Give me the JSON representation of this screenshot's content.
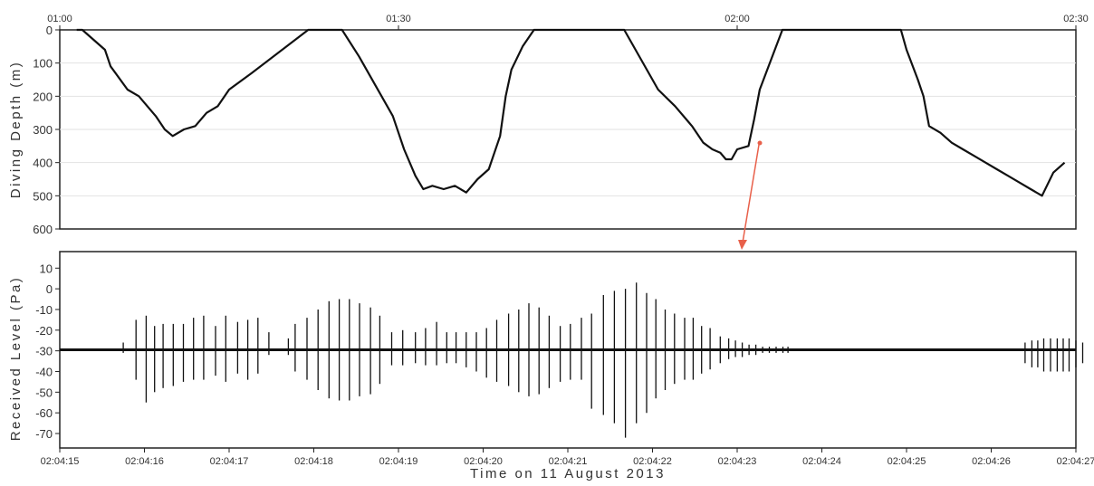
{
  "chart_data": [
    {
      "type": "line",
      "ylabel": "Diving Depth (m)",
      "x_ticks": [
        "01:00",
        "01:30",
        "02:00",
        "02:30"
      ],
      "x_range_min": [
        0,
        90
      ],
      "ylim": [
        600,
        0
      ],
      "y_ticks": [
        0,
        100,
        200,
        300,
        400,
        500,
        600
      ],
      "grid": "horizontal",
      "series": [
        {
          "color": "#111111",
          "x": [
            1.5,
            2,
            4,
            4.5,
            6,
            7,
            8.5,
            9.3,
            10,
            11,
            12,
            13,
            14,
            15,
            17,
            22,
            24,
            25,
            26.5,
            28,
            29.5,
            30.5,
            31.5,
            32.2,
            33,
            34,
            35,
            36,
            37,
            38,
            39,
            39.5,
            40,
            41,
            42,
            44,
            48.5,
            50,
            51.5,
            53,
            54.5,
            56,
            57,
            57.8,
            58.5,
            59,
            59.5,
            60,
            61,
            61.5,
            62,
            63,
            64,
            64.5,
            65,
            66,
            67,
            67.8,
            68.5,
            72,
            74.5,
            75,
            76,
            76.5,
            77,
            78,
            79,
            80,
            81,
            82,
            83,
            84,
            85,
            86,
            87,
            88,
            89
          ],
          "y": [
            0,
            0,
            60,
            110,
            180,
            200,
            260,
            300,
            320,
            300,
            290,
            250,
            230,
            180,
            130,
            0,
            0,
            0,
            80,
            170,
            260,
            360,
            440,
            480,
            470,
            480,
            470,
            490,
            450,
            420,
            320,
            200,
            120,
            50,
            0,
            0,
            0,
            0,
            90,
            180,
            230,
            290,
            340,
            360,
            370,
            390,
            390,
            360,
            350,
            270,
            180,
            90,
            0,
            0,
            0,
            0,
            0,
            0,
            0,
            0,
            0,
            60,
            150,
            200,
            290,
            310,
            340,
            360,
            380,
            400,
            420,
            440,
            460,
            480,
            500,
            430,
            400
          ]
        }
      ]
    },
    {
      "type": "line",
      "xlabel": "Time on 11 August 2013",
      "ylabel": "Received Level (Pa)",
      "x_ticks": [
        "02:04:15",
        "02:04:16",
        "02:04:17",
        "02:04:18",
        "02:04:19",
        "02:04:20",
        "02:04:21",
        "02:04:22",
        "02:04:23",
        "02:04:24",
        "02:04:25",
        "02:04:26",
        "02:04:27"
      ],
      "y_ticks": [
        10,
        0,
        -10,
        -20,
        -30,
        -40,
        -50,
        -60,
        -70
      ],
      "ylim": [
        -77,
        18
      ],
      "baseline": -29.5,
      "series": [
        {
          "color": "#111111",
          "pulse_times": [
            15.75,
            15.9,
            16.02,
            16.12,
            16.22,
            16.34,
            16.46,
            16.58,
            16.7,
            16.84,
            16.96,
            17.1,
            17.22,
            17.34,
            17.47,
            17.7,
            17.78,
            17.92,
            18.05,
            18.18,
            18.3,
            18.42,
            18.54,
            18.67,
            18.78,
            18.92,
            19.05,
            19.2,
            19.32,
            19.45,
            19.57,
            19.68,
            19.8,
            19.92,
            20.04,
            20.16,
            20.3,
            20.42,
            20.54,
            20.66,
            20.78,
            20.91,
            21.03,
            21.16,
            21.28,
            21.42,
            21.55,
            21.68,
            21.81,
            21.93,
            22.04,
            22.15,
            22.26,
            22.38,
            22.48,
            22.58,
            22.68,
            22.8,
            22.9,
            22.98,
            23.06,
            23.14,
            23.22,
            23.3,
            23.38,
            23.46,
            23.54,
            23.6,
            23.66,
            23.72,
            23.78,
            23.84,
            23.9,
            23.96,
            24.02,
            24.08,
            26.4,
            26.48,
            26.55,
            26.62,
            26.7,
            26.78,
            26.85,
            26.92,
            27.0,
            27.08
          ],
          "pulse_top": [
            -26,
            -15,
            -13,
            -18,
            -17,
            -17,
            -17,
            -14,
            -13,
            -18,
            -13,
            -16,
            -15,
            -14,
            -21,
            -24,
            -17,
            -14,
            -10,
            -6,
            -5,
            -5,
            -7,
            -9,
            -13,
            -21,
            -20,
            -21,
            -19,
            -16,
            -21,
            -21,
            -21,
            -21,
            -19,
            -15,
            -12,
            -10,
            -7,
            -9,
            -13,
            -18,
            -17,
            -14,
            -12,
            -3,
            -1,
            0,
            3,
            -2,
            -5,
            -10,
            -12,
            -14,
            -14,
            -18,
            -19,
            -23,
            -24,
            -25,
            -26,
            -27,
            -27,
            -28,
            -28,
            -28,
            -28,
            -28,
            -29,
            -29,
            -29,
            -29,
            -29,
            -29,
            -29,
            -29,
            -26,
            -25,
            -25,
            -24,
            -24,
            -24,
            -24,
            -24,
            -25,
            -26
          ],
          "pulse_bottom": [
            -31,
            -44,
            -55,
            -50,
            -48,
            -47,
            -45,
            -44,
            -44,
            -42,
            -45,
            -41,
            -44,
            -41,
            -32,
            -32,
            -40,
            -44,
            -49,
            -53,
            -54,
            -54,
            -52,
            -51,
            -46,
            -37,
            -37,
            -36,
            -37,
            -37,
            -36,
            -36,
            -38,
            -40,
            -43,
            -45,
            -47,
            -50,
            -52,
            -51,
            -48,
            -45,
            -44,
            -44,
            -58,
            -61,
            -65,
            -72,
            -65,
            -60,
            -53,
            -49,
            -46,
            -44,
            -44,
            -41,
            -39,
            -36,
            -34,
            -33,
            -33,
            -32,
            -32,
            -31,
            -31,
            -31,
            -31,
            -31,
            -30,
            -30,
            -30,
            -30,
            -30,
            -30,
            -30,
            -30,
            -36,
            -38,
            -38,
            -40,
            -40,
            -40,
            -40,
            -40,
            -38,
            -36
          ]
        }
      ]
    }
  ]
}
